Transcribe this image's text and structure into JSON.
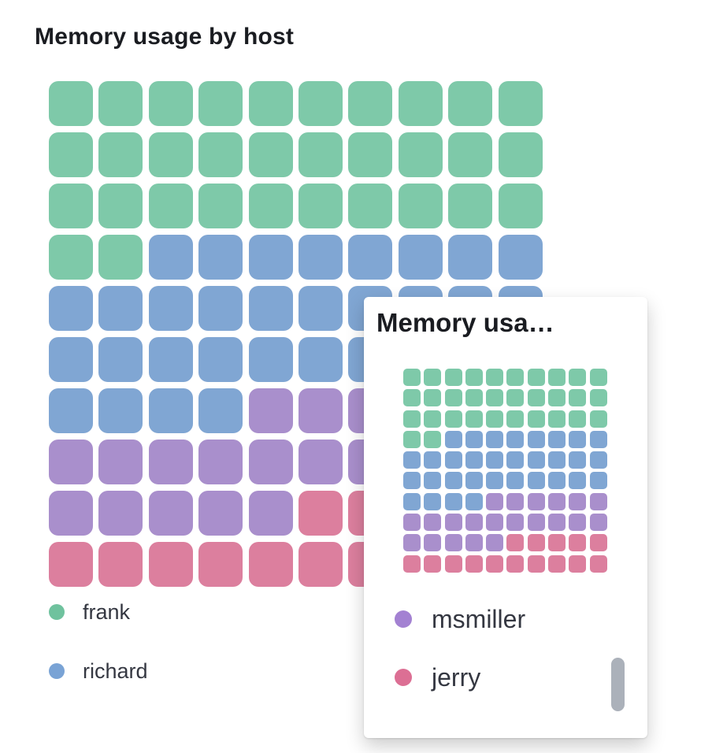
{
  "main_chart": {
    "title": "Memory usage by host",
    "legend": [
      {
        "label": "frank",
        "color": "#6fc29e"
      },
      {
        "label": "richard",
        "color": "#79a3d5"
      }
    ]
  },
  "popup": {
    "title": "Memory usa…",
    "legend": [
      {
        "label": "msmiller",
        "color": "#a381d2"
      },
      {
        "label": "jerry",
        "color": "#dc6f94"
      }
    ]
  },
  "chart_data": {
    "type": "waffle",
    "title": "Memory usage by host",
    "categories": [
      "frank",
      "richard",
      "msmiller",
      "jerry"
    ],
    "values": [
      32,
      32,
      21,
      15
    ],
    "value_unit": "cells of a 10x10 grid (percent of memory usage)",
    "colors": {
      "frank": "#7ec9a9",
      "richard": "#80a6d3",
      "msmiller": "#a98fcc",
      "jerry": "#dc7f9e"
    },
    "grid": {
      "rows": 10,
      "cols": 10,
      "fill_order": "row-major from top-left"
    },
    "legend_position": "bottom",
    "legend_entries": [
      "frank",
      "richard",
      "msmiller",
      "jerry"
    ]
  }
}
